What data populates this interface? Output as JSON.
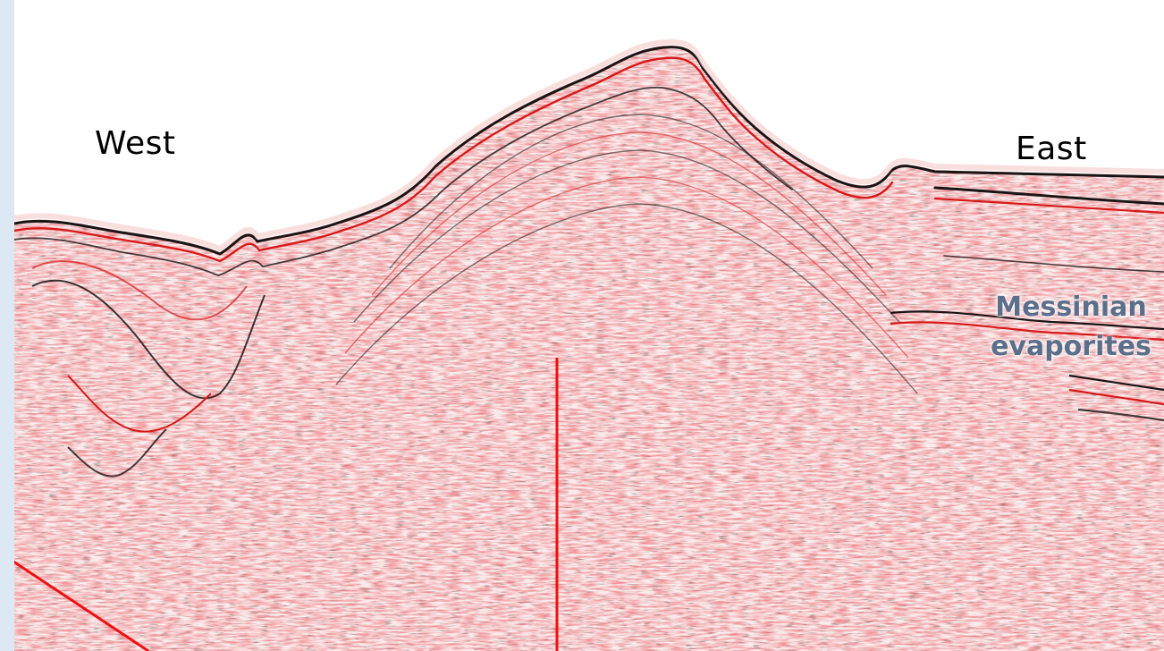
{
  "labels": {
    "west": "West",
    "east": "East",
    "annotation_line1": "Messinian",
    "annotation_line2": "evaporites"
  },
  "colors": {
    "reflector_dark": "#1a1414",
    "reflector_red": "#d81818",
    "noise_pink": "#f0a0a0",
    "marker_line": "#ee1111",
    "annotation_text": "#5b6f8a",
    "side_panel": "#dce8f4"
  }
}
